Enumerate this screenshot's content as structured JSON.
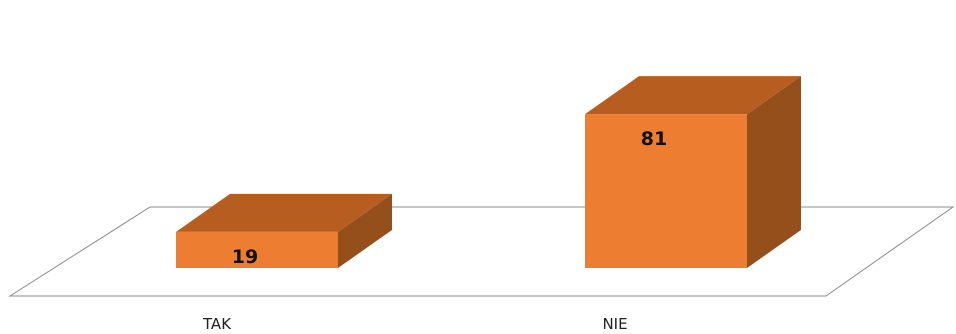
{
  "chart_data": {
    "type": "bar",
    "style": "3d",
    "categories": [
      "TAK",
      "NIE"
    ],
    "values": [
      19,
      81
    ],
    "ylim": [
      0,
      100
    ],
    "grid": false,
    "legend": "none",
    "colors": {
      "front": "#ed7d31",
      "top": "#b85d20",
      "side": "#954f1b",
      "floor": "#ffffff",
      "floor_edge": "#8c8c8c"
    }
  }
}
